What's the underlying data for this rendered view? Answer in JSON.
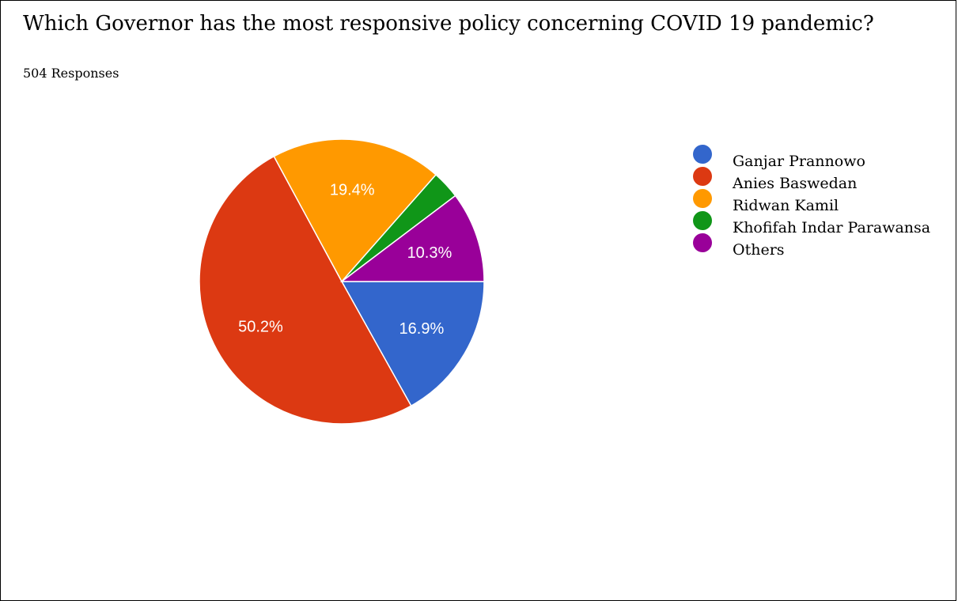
{
  "title": "Which Governor has the most responsive policy concerning COVID 19 pandemic?",
  "subtitle": "504 Responses",
  "chart_data": {
    "type": "pie",
    "title": "Which Governor has the most responsive policy concerning COVID 19 pandemic?",
    "start_angle_deg": 90,
    "direction": "clockwise",
    "legend_position": "right",
    "slices": [
      {
        "name": "Ganjar Prannowo",
        "value": 16.9,
        "label": "16.9%",
        "color": "#3366cc"
      },
      {
        "name": "Anies Baswedan",
        "value": 50.2,
        "label": "50.2%",
        "color": "#dc3912"
      },
      {
        "name": "Ridwan Kamil",
        "value": 19.4,
        "label": "19.4%",
        "color": "#ff9900"
      },
      {
        "name": "Khofifah Indar Parawansa",
        "value": 3.2,
        "label": "",
        "color": "#109618"
      },
      {
        "name": "Others",
        "value": 10.3,
        "label": "10.3%",
        "color": "#990099"
      }
    ]
  }
}
